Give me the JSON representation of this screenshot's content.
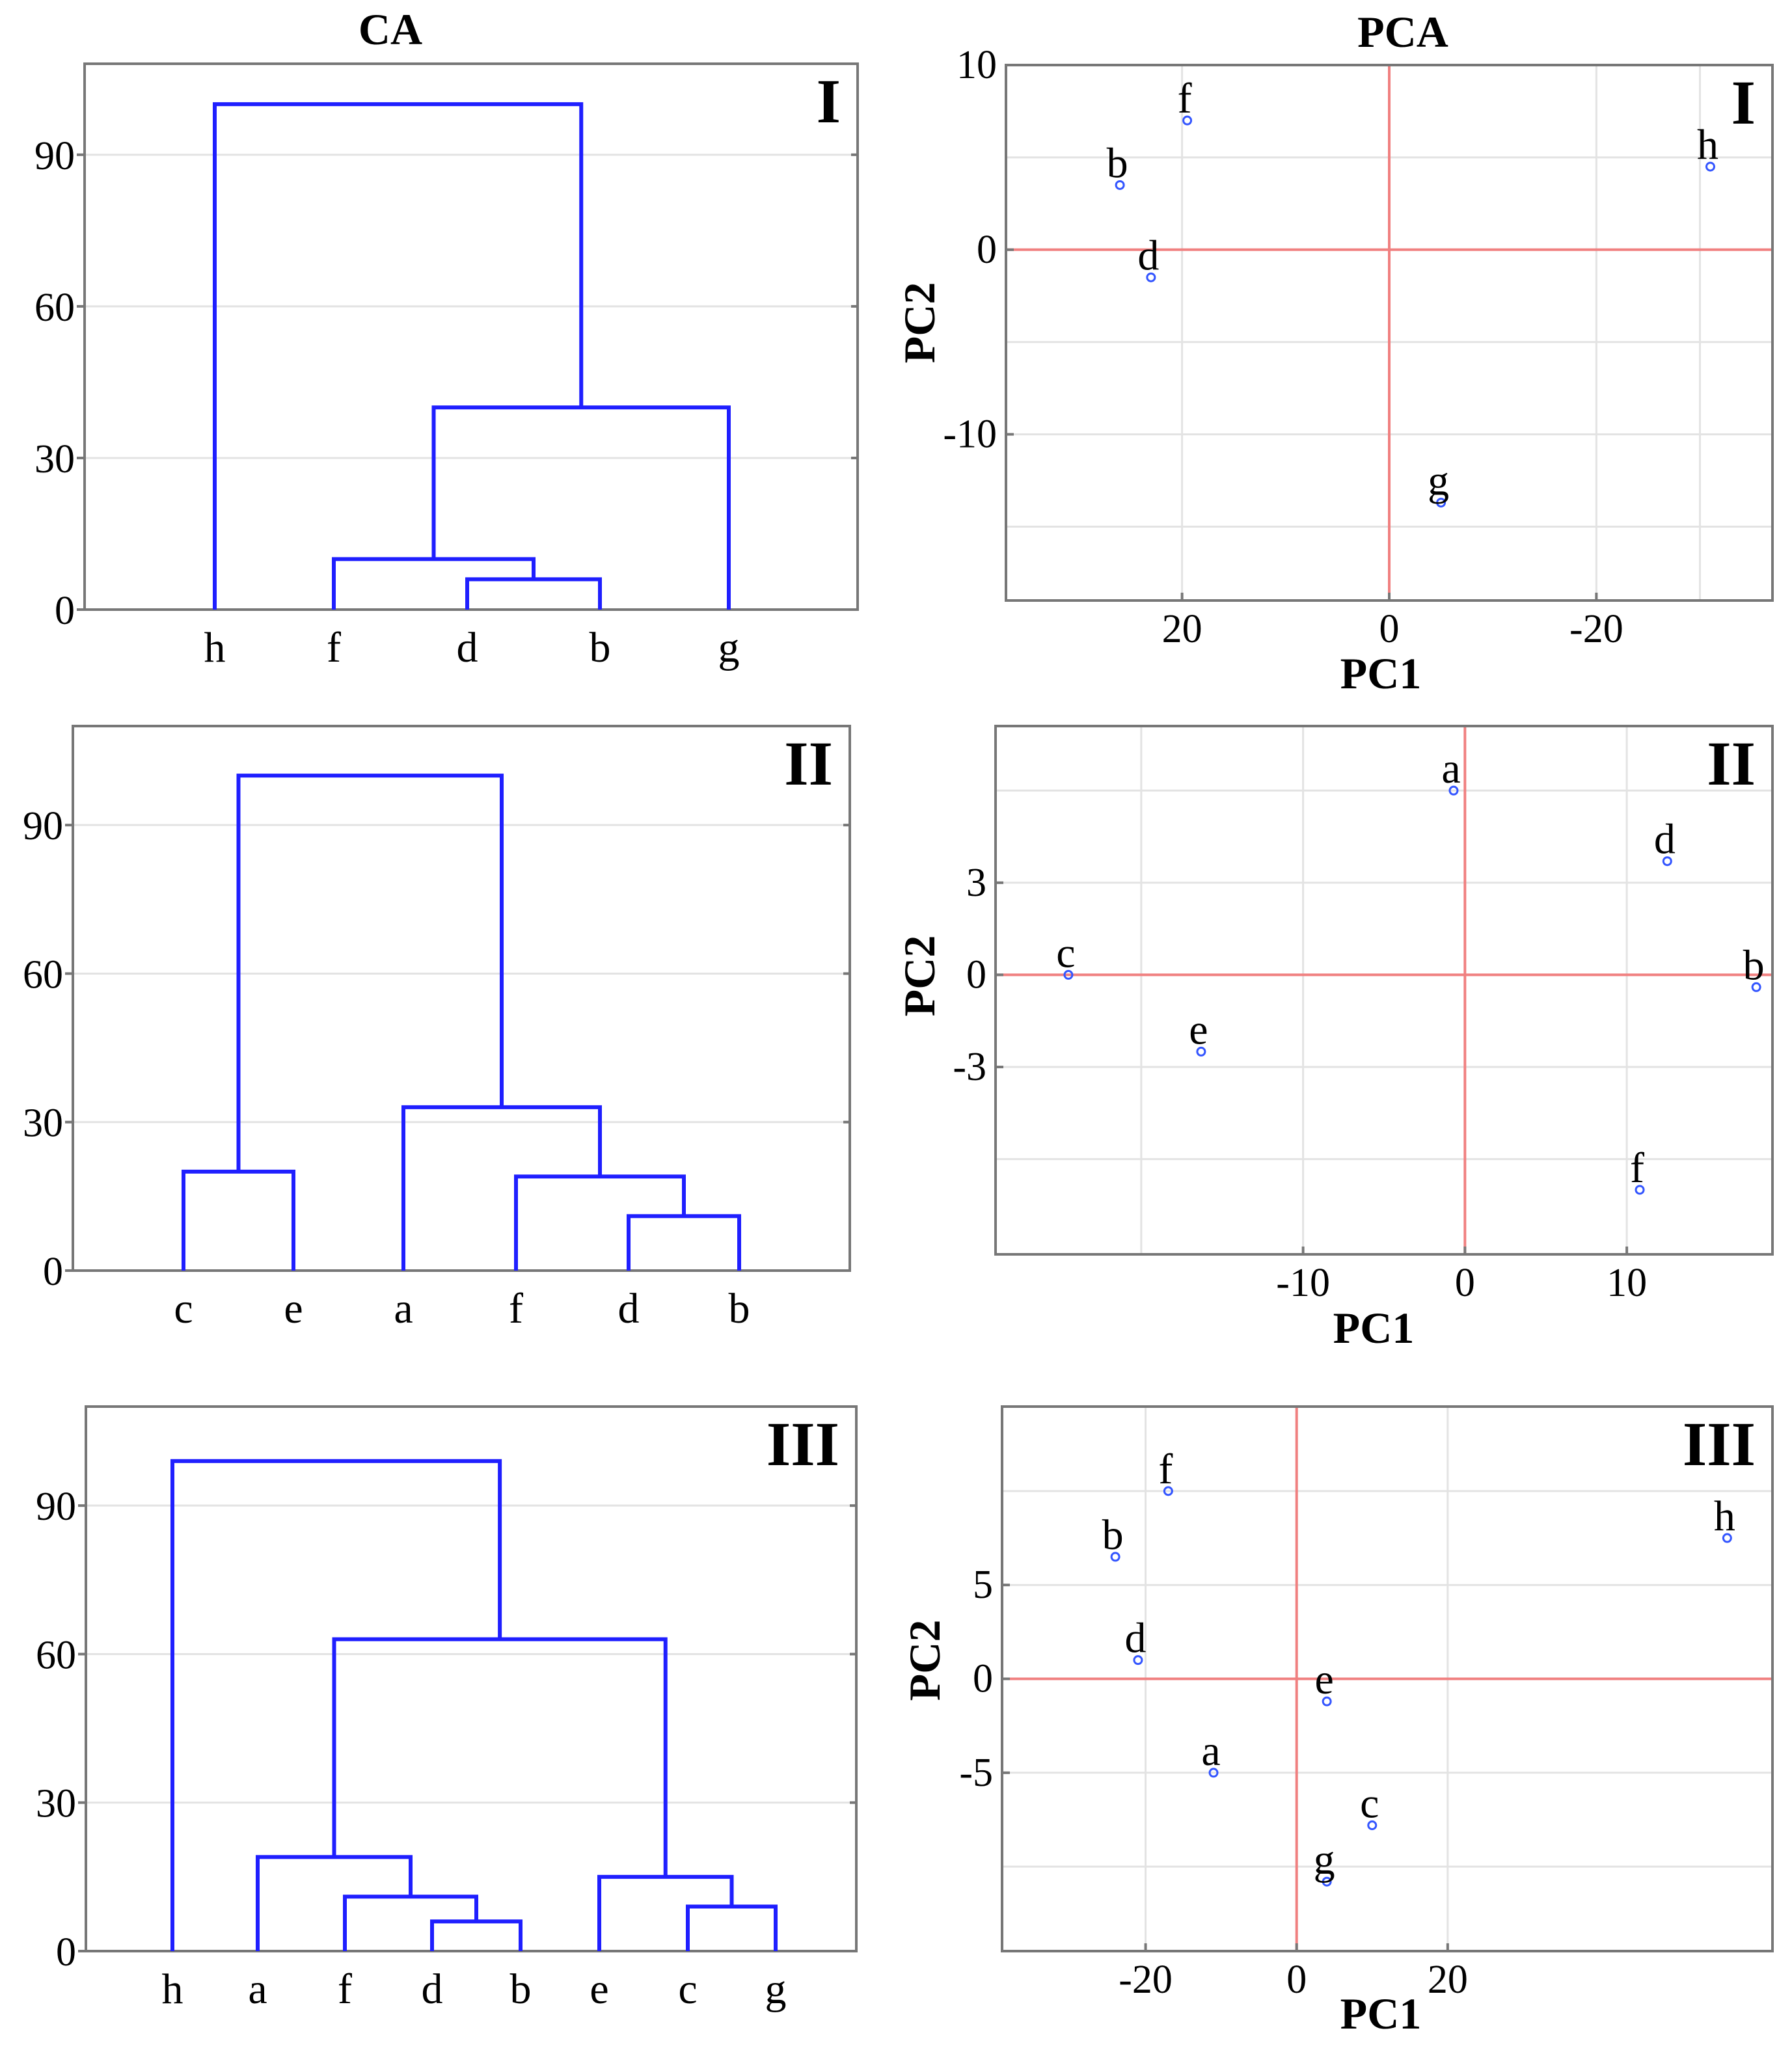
{
  "titles": {
    "ca": "CA",
    "pca": "PCA"
  },
  "colors": {
    "dendrogram": "#1f1fff",
    "zero_line": "#f08080",
    "point": "#3355ff"
  },
  "chart_data": [
    {
      "type": "dendrogram",
      "panel": "I",
      "method": "CA",
      "leaves": [
        "h",
        "f",
        "d",
        "b",
        "g"
      ],
      "ylim": [
        0,
        108
      ],
      "yticks": [
        0,
        30,
        60,
        90
      ],
      "merges": [
        {
          "a": "d",
          "b": "b",
          "height": 6
        },
        {
          "a": "f",
          "b": [
            "d",
            "b"
          ],
          "height": 10
        },
        {
          "a": [
            "f",
            "d",
            "b"
          ],
          "b": "g",
          "height": 40
        },
        {
          "a": "h",
          "b": [
            "f",
            "d",
            "b",
            "g"
          ],
          "height": 100
        }
      ]
    },
    {
      "type": "dendrogram",
      "panel": "II",
      "method": "CA",
      "leaves": [
        "c",
        "e",
        "a",
        "f",
        "d",
        "b"
      ],
      "ylim": [
        0,
        110
      ],
      "yticks": [
        0,
        30,
        60,
        90
      ],
      "merges": [
        {
          "a": "d",
          "b": "b",
          "height": 11
        },
        {
          "a": "f",
          "b": [
            "d",
            "b"
          ],
          "height": 19
        },
        {
          "a": "c",
          "b": "e",
          "height": 20
        },
        {
          "a": "a",
          "b": [
            "f",
            "d",
            "b"
          ],
          "height": 33
        },
        {
          "a": [
            "c",
            "e"
          ],
          "b": [
            "a",
            "f",
            "d",
            "b"
          ],
          "height": 100
        }
      ]
    },
    {
      "type": "dendrogram",
      "panel": "III",
      "method": "CA",
      "leaves": [
        "h",
        "a",
        "f",
        "d",
        "b",
        "e",
        "c",
        "g"
      ],
      "ylim": [
        0,
        110
      ],
      "yticks": [
        0,
        30,
        60,
        90
      ],
      "merges": [
        {
          "a": "d",
          "b": "b",
          "height": 6
        },
        {
          "a": "c",
          "b": "g",
          "height": 9
        },
        {
          "a": "f",
          "b": [
            "d",
            "b"
          ],
          "height": 11
        },
        {
          "a": "e",
          "b": [
            "c",
            "g"
          ],
          "height": 15
        },
        {
          "a": "a",
          "b": [
            "f",
            "d",
            "b"
          ],
          "height": 19
        },
        {
          "a": [
            "a",
            "f",
            "d",
            "b"
          ],
          "b": [
            "e",
            "c",
            "g"
          ],
          "height": 63
        },
        {
          "a": "h",
          "b": [
            "a",
            "f",
            "d",
            "b",
            "e",
            "c",
            "g"
          ],
          "height": 99
        }
      ]
    },
    {
      "type": "scatter",
      "panel": "I",
      "method": "PCA",
      "xlabel": "PC1",
      "ylabel": "PC2",
      "xlim": [
        37,
        -37
      ],
      "ylim": [
        -19,
        10
      ],
      "xticks": [
        20,
        0,
        -20
      ],
      "yticks": [
        10,
        0,
        -10
      ],
      "xgrid": [
        20,
        0,
        -20,
        -30
      ],
      "ygrid": [
        10,
        5,
        0,
        -5,
        -10,
        -15
      ],
      "points": [
        {
          "label": "f",
          "x": 19.5,
          "y": 7
        },
        {
          "label": "b",
          "x": 26,
          "y": 3.5
        },
        {
          "label": "d",
          "x": 23,
          "y": -1.5
        },
        {
          "label": "h",
          "x": -31,
          "y": 4.5
        },
        {
          "label": "g",
          "x": -5,
          "y": -13.7
        }
      ]
    },
    {
      "type": "scatter",
      "panel": "II",
      "method": "PCA",
      "xlabel": "PC1",
      "ylabel": "PC2",
      "xlim": [
        -29,
        19
      ],
      "ylim": [
        -9.1,
        8.1
      ],
      "xticks": [
        -10,
        0,
        10
      ],
      "yticks": [
        3,
        0,
        -3
      ],
      "xgrid": [
        -20,
        -10,
        0,
        10
      ],
      "ygrid": [
        6,
        3,
        0,
        -3,
        -6
      ],
      "points": [
        {
          "label": "a",
          "x": -0.7,
          "y": 6
        },
        {
          "label": "d",
          "x": 12.5,
          "y": 3.7
        },
        {
          "label": "c",
          "x": -24.5,
          "y": 0
        },
        {
          "label": "b",
          "x": 18,
          "y": -0.4
        },
        {
          "label": "e",
          "x": -16.3,
          "y": -2.5
        },
        {
          "label": "f",
          "x": 10.8,
          "y": -7
        }
      ]
    },
    {
      "type": "scatter",
      "panel": "III",
      "method": "PCA",
      "xlabel": "PC1",
      "ylabel": "PC2",
      "xlim": [
        -39,
        63
      ],
      "ylim": [
        -14.5,
        14.5
      ],
      "xticks": [
        -20,
        0,
        20
      ],
      "yticks": [
        5,
        0,
        -5
      ],
      "xgrid": [
        -20,
        0,
        20
      ],
      "ygrid": [
        10,
        5,
        0,
        -5,
        -10
      ],
      "points": [
        {
          "label": "f",
          "x": -17,
          "y": 10
        },
        {
          "label": "b",
          "x": -24,
          "y": 6.5
        },
        {
          "label": "h",
          "x": 57,
          "y": 7.5
        },
        {
          "label": "d",
          "x": -21,
          "y": 1
        },
        {
          "label": "e",
          "x": 4,
          "y": -1.2
        },
        {
          "label": "a",
          "x": -11,
          "y": -5
        },
        {
          "label": "c",
          "x": 10,
          "y": -7.8
        },
        {
          "label": "g",
          "x": 4,
          "y": -10.8
        }
      ]
    }
  ]
}
